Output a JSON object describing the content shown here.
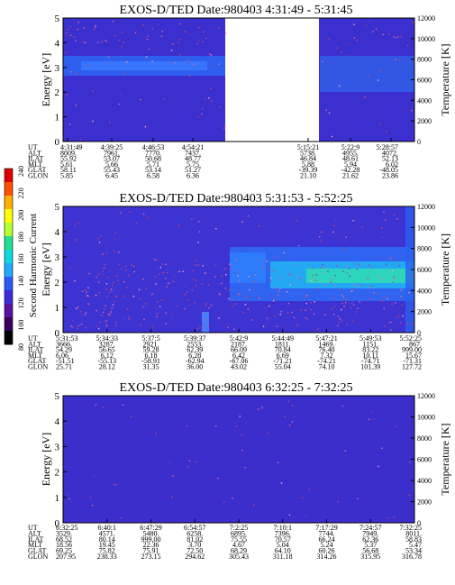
{
  "colorbar": {
    "label": "Second Harmonic Current",
    "ticks": [
      "80",
      "100",
      "120",
      "140",
      "160",
      "180",
      "200",
      "220",
      "240"
    ],
    "colors": [
      "#000000",
      "#3a0060",
      "#5a10a0",
      "#3a2cd8",
      "#2a5af5",
      "#22a8ff",
      "#10d8e0",
      "#20e090",
      "#b8ff30",
      "#ffff00",
      "#ffb000",
      "#ff5000",
      "#e00000"
    ]
  },
  "chart_data": [
    {
      "type": "heatmap",
      "title": "EXOS-D/TED   Date:980403   4:31:49 - 5:31:45",
      "ylabel": "Energy [eV]",
      "y2label": "Temperature [K]",
      "ylim": [
        0,
        5
      ],
      "y2lim": [
        0,
        12000
      ],
      "yticks": [
        "0",
        "1",
        "2",
        "3",
        "4",
        "5"
      ],
      "y2ticks": [
        "0",
        "2000",
        "4000",
        "6000",
        "8000",
        "10000",
        "12000"
      ],
      "data_gap": [
        "4:54:21",
        "5:15:21"
      ],
      "ephemeris_labels": [
        "UT",
        "ALT",
        "ILAT",
        "MLT",
        "GLAT",
        "GLON"
      ],
      "ephemeris": [
        [
          "4:31:49",
          "8009.",
          "55.92",
          "5.61",
          "58.11",
          "5.85"
        ],
        [
          "4:39:25",
          "7961.",
          "53.07",
          "5.66",
          "55.43",
          "6.45"
        ],
        [
          "4:46:53",
          "7770.",
          "50.68",
          "5.71",
          "53.14",
          "6.58"
        ],
        [
          "4:54:21",
          "7437.",
          "48.77",
          "5.75",
          "51.27",
          "6.36"
        ],
        [
          "5:15:21",
          "5738.",
          "46.84",
          "5.88",
          "-39.39",
          "21.10"
        ],
        [
          "5:22:9",
          "4955.",
          "48.61",
          "5.94",
          "-42.28",
          "21.62"
        ],
        [
          "5:28:57",
          "4072.",
          "52.13",
          "6.02",
          "-48.05",
          "23.86"
        ]
      ]
    },
    {
      "type": "heatmap",
      "title": "EXOS-D/TED   Date:980403   5:31:53 - 5:52:25",
      "ylabel": "Energy [eV]",
      "y2label": "Temperature [K]",
      "ylim": [
        0,
        5
      ],
      "y2lim": [
        0,
        12000
      ],
      "yticks": [
        "0",
        "1",
        "2",
        "3",
        "4",
        "5"
      ],
      "y2ticks": [
        "0",
        "2000",
        "4000",
        "6000",
        "8000",
        "10000",
        "12000"
      ],
      "ephemeris_labels": [
        "UT",
        "ALT",
        "ILAT",
        "MLT",
        "GLAT",
        "GLON"
      ],
      "ephemeris": [
        [
          "5:31:53",
          "3666.",
          "54.29",
          "6.06",
          "-51.51",
          "25.71"
        ],
        [
          "5:34:33",
          "3287.",
          "56.65",
          "6.12",
          "-55.13",
          "28.12"
        ],
        [
          "5:37:5",
          "2921.",
          "59.28",
          "6.18",
          "-58.91",
          "31.35"
        ],
        [
          "5:39:37",
          "2553.",
          "62.39",
          "6.28",
          "-62.94",
          "36.00"
        ],
        [
          "5:42:9",
          "2187.",
          "66.09",
          "6.42",
          "-67.06",
          "43.02"
        ],
        [
          "5:44:49",
          "1811.",
          "70.84",
          "6.69",
          "-71.21",
          "55.04"
        ],
        [
          "5:47:21",
          "1469.",
          "76.40",
          "7.32",
          "-74.21",
          "74.10"
        ],
        [
          "5:49:53",
          "1151.",
          "83.22",
          "10.11",
          "-74.71",
          "101.39"
        ],
        [
          "5:52:25",
          "867.",
          "999.00",
          "15.67",
          "-71.31",
          "127.72"
        ]
      ]
    },
    {
      "type": "heatmap",
      "title": "EXOS-D/TED   Date:980403   6:32:25 - 7:32:25",
      "ylabel": "Energy [eV]",
      "y2label": "Temperature [K]",
      "ylim": [
        0,
        5
      ],
      "y2lim": [
        0,
        12000
      ],
      "yticks": [
        "0",
        "1",
        "2",
        "3",
        "4",
        "5"
      ],
      "y2ticks": [
        "0",
        "2000",
        "4000",
        "6000",
        "8000",
        "10000",
        "12000"
      ],
      "ephemeris_labels": [
        "UT",
        "ALT",
        "ILAT",
        "MLT",
        "GLAT",
        "GLON"
      ],
      "ephemeris": [
        [
          "6:32:25",
          "3529.",
          "68.52",
          "18.56",
          "69.25",
          "207.95"
        ],
        [
          "6:40:1",
          "4571.",
          "80.14",
          "19.45",
          "75.82",
          "238.33"
        ],
        [
          "6:47:29",
          "5480.",
          "999.00",
          "22.36",
          "75.91",
          "273.15"
        ],
        [
          "6:54:57",
          "6258.",
          "81.02",
          "3.70",
          "72.50",
          "294.62"
        ],
        [
          "7:2:25",
          "6895.",
          "75.55",
          "4.67",
          "68.29",
          "305.43"
        ],
        [
          "7:10:1",
          "7396.",
          "70.57",
          "5.04",
          "64.10",
          "311.18"
        ],
        [
          "7:17:29",
          "7744.",
          "66.24",
          "5.24",
          "60.26",
          "314.26"
        ],
        [
          "7:24:57",
          "7949.",
          "62.36",
          "5.37",
          "56.68",
          "315.95"
        ],
        [
          "7:32:25",
          "8011.",
          "58.83",
          "5.47",
          "53.34",
          "316.78"
        ]
      ]
    }
  ]
}
